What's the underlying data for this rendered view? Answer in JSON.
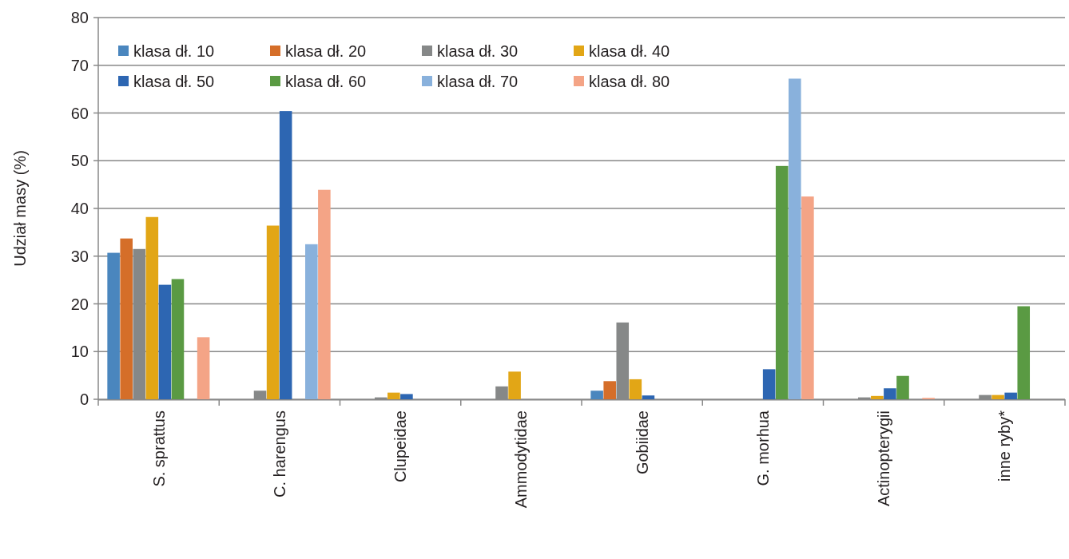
{
  "chart_data": {
    "type": "bar",
    "ylabel": "Udział masy (%)",
    "categories": [
      "S. sprattus",
      "C. harengus",
      "Clupeidae",
      "Ammodytidae",
      "Gobiidae",
      "G. morhua",
      "Actinopterygii",
      "inne ryby*"
    ],
    "series": [
      {
        "name": "klasa dł. 10",
        "color": "#4a86be",
        "values": [
          30.7,
          0,
          0,
          0,
          1.8,
          0,
          0,
          0
        ]
      },
      {
        "name": "klasa dł. 20",
        "color": "#d56e29",
        "values": [
          33.7,
          0,
          0,
          0,
          3.8,
          0,
          0,
          0
        ]
      },
      {
        "name": "klasa dł. 30",
        "color": "#868888",
        "values": [
          31.5,
          1.8,
          0.4,
          2.7,
          16.1,
          0,
          0.4,
          0.9
        ]
      },
      {
        "name": "klasa dł. 40",
        "color": "#e2a616",
        "values": [
          38.2,
          36.4,
          1.4,
          5.8,
          4.2,
          0,
          0.7,
          0.9
        ]
      },
      {
        "name": "klasa dł. 50",
        "color": "#2d66b2",
        "values": [
          24.0,
          60.4,
          1.1,
          0,
          0.8,
          6.3,
          2.3,
          1.4
        ]
      },
      {
        "name": "klasa dł. 60",
        "color": "#5a9a43",
        "values": [
          25.2,
          0,
          0,
          0,
          0,
          48.9,
          4.9,
          19.5
        ]
      },
      {
        "name": "klasa dł. 70",
        "color": "#89b1dc",
        "values": [
          0,
          32.5,
          0,
          0,
          0,
          67.2,
          0,
          0
        ]
      },
      {
        "name": "klasa dł. 80",
        "color": "#f4a486",
        "values": [
          13.0,
          43.9,
          0,
          0,
          0,
          42.5,
          0.3,
          0
        ]
      }
    ],
    "ylim": [
      0,
      80
    ],
    "yticks": [
      0,
      10,
      20,
      30,
      40,
      50,
      60,
      70,
      80
    ],
    "grid": "y",
    "legend": "top left"
  }
}
